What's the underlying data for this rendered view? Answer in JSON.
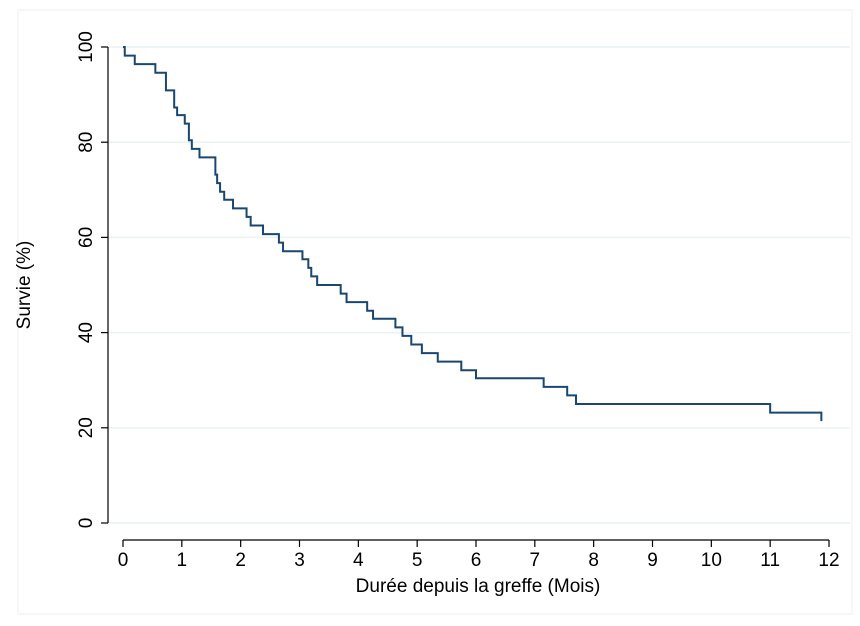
{
  "chart_data": {
    "type": "step",
    "x_label": "Durée depuis la greffe (Mois)",
    "y_label": "Survie (%)",
    "x": [
      0,
      0.03,
      0.2,
      0.55,
      0.73,
      0.87,
      0.92,
      1.05,
      1.12,
      1.17,
      1.3,
      1.57,
      1.6,
      1.65,
      1.72,
      1.87,
      2.1,
      2.17,
      2.38,
      2.65,
      2.72,
      3.05,
      3.15,
      3.2,
      3.3,
      3.7,
      3.8,
      4.15,
      4.25,
      4.63,
      4.75,
      4.9,
      5.08,
      5.35,
      5.75,
      6.0,
      7.15,
      7.55,
      7.7,
      11.0,
      11.87
    ],
    "series": [
      {
        "color": "#1a476f",
        "values": [
          100,
          98.2,
          96.4,
          94.6,
          90.9,
          87.3,
          85.7,
          83.9,
          80.4,
          78.6,
          76.8,
          73.2,
          71.4,
          69.6,
          67.9,
          66.1,
          64.3,
          62.5,
          60.7,
          58.9,
          57.1,
          55.4,
          53.6,
          51.8,
          50,
          48.2,
          46.4,
          44.6,
          42.9,
          41.1,
          39.3,
          37.5,
          35.7,
          33.9,
          32.1,
          30.4,
          28.6,
          26.8,
          25.0,
          23.2,
          21.4
        ]
      }
    ],
    "xlim": [
      0,
      12
    ],
    "xticks": [
      0,
      1,
      2,
      3,
      4,
      5,
      6,
      7,
      8,
      9,
      10,
      11,
      12
    ],
    "ylim": [
      0,
      100
    ],
    "yticks": [
      0,
      20,
      40,
      60,
      80,
      100
    ],
    "grid": true
  }
}
